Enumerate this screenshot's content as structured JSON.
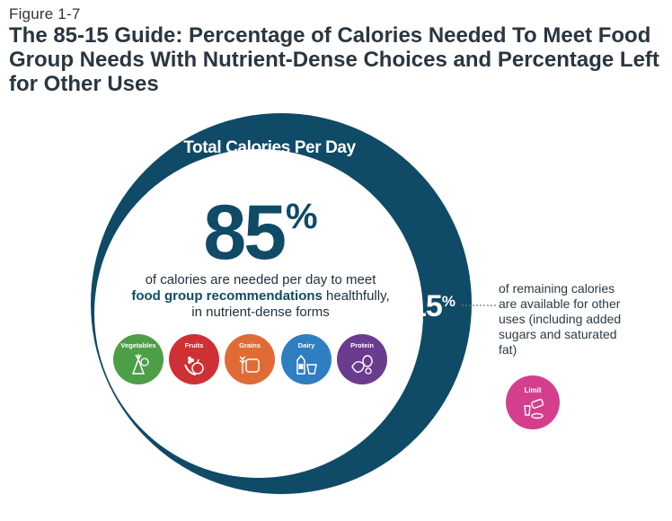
{
  "figure": {
    "label": "Figure 1-7",
    "title": "The 85-15 Guide: Percentage of Calories Needed To Meet Food Group Needs With Nutrient-Dense Choices and Percentage Left for Other Uses"
  },
  "diagram": {
    "outer_title": "Total Calories Per Day",
    "main_value": "85",
    "main_symbol": "%",
    "main_desc_line1": "of calories are needed per day to meet",
    "main_desc_bold": "food group recommendations",
    "main_desc_line2_rest": " healthfully,",
    "main_desc_line3": "in nutrient-dense forms",
    "remaining_value": "15",
    "remaining_symbol": "%",
    "remaining_desc": "of remaining calories are available for other uses (including added sugars and saturated fat)",
    "food_groups": [
      {
        "label": "Vegetables",
        "color": "#4c9e47",
        "icon": "vegetables-icon"
      },
      {
        "label": "Fruits",
        "color": "#cf3033",
        "icon": "fruits-icon"
      },
      {
        "label": "Grains",
        "color": "#e06b35",
        "icon": "grains-icon"
      },
      {
        "label": "Dairy",
        "color": "#2f7ec1",
        "icon": "dairy-icon"
      },
      {
        "label": "Protein",
        "color": "#6a3c8e",
        "icon": "protein-icon"
      }
    ],
    "limit": {
      "label": "Limit",
      "color": "#d43f8d",
      "icon": "limit-icon"
    },
    "colors": {
      "outer_ring": "#0f4a66",
      "inner_fill": "#ffffff",
      "text_accent": "#0f4a66"
    }
  }
}
